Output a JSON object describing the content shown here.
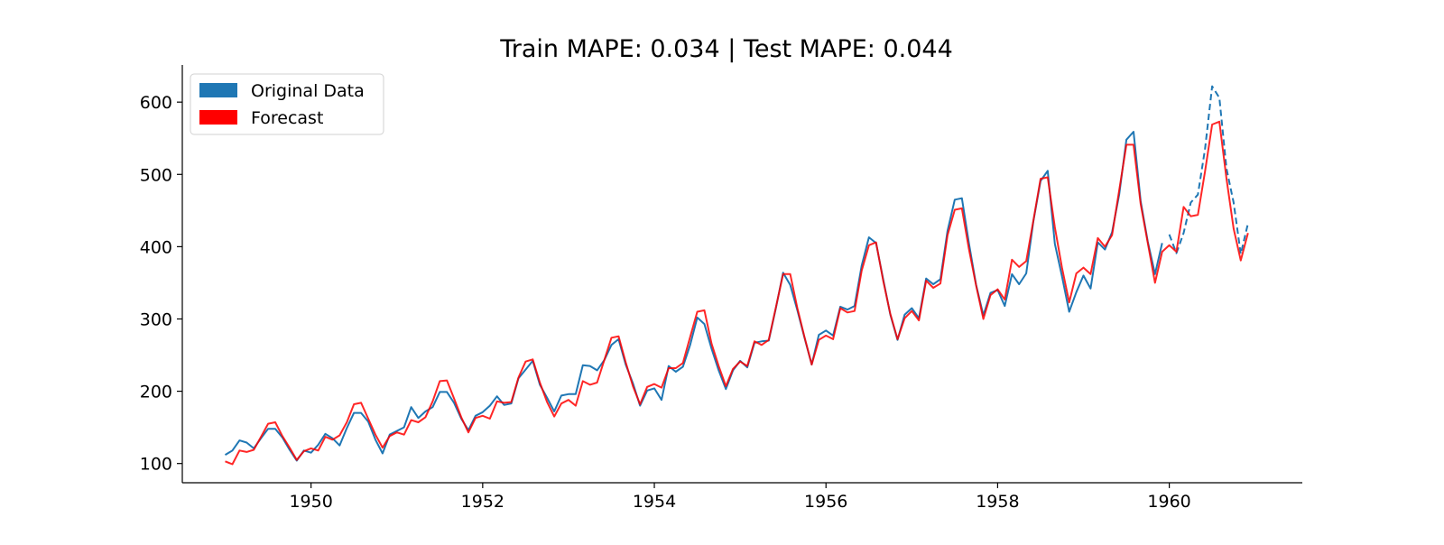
{
  "chart_data": {
    "type": "line",
    "title": "Train MAPE: 0.034 | Test MAPE: 0.044",
    "xlabel": "",
    "ylabel": "",
    "xlim": [
      1948.5,
      1961.55
    ],
    "ylim": [
      73.4,
      651.4
    ],
    "x_ticks": [
      1950,
      1952,
      1954,
      1956,
      1958,
      1960
    ],
    "y_ticks": [
      100,
      200,
      300,
      400,
      500,
      600
    ],
    "grid": false,
    "legend_position": "top-left",
    "legend": [
      {
        "label": "Original Data",
        "color": "#1f77b4"
      },
      {
        "label": "Forecast",
        "color": "#ff0000"
      }
    ],
    "start": "1949-01",
    "frequency": "monthly",
    "series": [
      {
        "name": "Original Data",
        "color": "#1f77b4",
        "style": "solid",
        "start": "1949-01",
        "values": [
          112,
          118,
          132,
          129,
          121,
          135,
          148,
          148,
          136,
          119,
          104,
          118,
          115,
          126,
          141,
          135,
          125,
          149,
          170,
          170,
          158,
          133,
          114,
          140,
          145,
          150,
          178,
          163,
          172,
          178,
          199,
          199,
          184,
          162,
          146,
          166,
          171,
          180,
          193,
          181,
          183,
          218,
          230,
          242,
          209,
          191,
          172,
          194,
          196,
          196,
          236,
          235,
          229,
          243,
          264,
          272,
          237,
          211,
          180,
          201,
          204,
          188,
          235,
          227,
          234,
          264,
          302,
          293,
          259,
          229,
          203,
          229,
          242,
          233,
          267,
          269,
          270,
          315,
          364,
          347,
          312,
          274,
          237,
          278,
          284,
          277,
          317,
          313,
          318,
          374,
          413,
          405,
          355,
          306,
          271,
          306,
          315,
          301,
          356,
          348,
          355,
          422,
          465,
          467,
          404,
          347,
          305,
          336,
          340,
          318,
          362,
          348,
          363,
          435,
          491,
          505,
          404,
          359,
          310,
          337,
          360,
          342,
          406,
          396,
          420,
          472,
          548,
          559,
          463,
          407,
          362,
          405
        ]
      },
      {
        "name": "Original Data",
        "color": "#1f77b4",
        "style": "dashed",
        "start": "1960-01",
        "values": [
          417,
          391,
          419,
          461,
          472,
          535,
          622,
          606,
          508,
          461,
          390,
          432
        ]
      },
      {
        "name": "Forecast",
        "color": "#ff0000",
        "style": "solid",
        "start": "1949-01",
        "values": [
          103,
          99,
          118,
          116,
          119,
          137,
          155,
          157,
          138,
          122,
          105,
          117,
          121,
          118,
          137,
          133,
          139,
          157,
          182,
          184,
          162,
          140,
          122,
          138,
          143,
          140,
          160,
          157,
          164,
          186,
          214,
          215,
          190,
          164,
          143,
          163,
          166,
          162,
          186,
          184,
          185,
          219,
          241,
          244,
          212,
          185,
          165,
          183,
          188,
          180,
          214,
          209,
          212,
          243,
          274,
          276,
          240,
          207,
          182,
          206,
          210,
          205,
          232,
          232,
          239,
          275,
          310,
          312,
          266,
          235,
          207,
          231,
          241,
          235,
          269,
          264,
          271,
          316,
          362,
          362,
          315,
          275,
          237,
          271,
          277,
          272,
          315,
          309,
          311,
          367,
          402,
          406,
          353,
          307,
          272,
          301,
          311,
          298,
          353,
          343,
          349,
          416,
          451,
          453,
          396,
          346,
          300,
          333,
          341,
          327,
          382,
          372,
          380,
          436,
          494,
          496,
          427,
          371,
          323,
          363,
          371,
          362,
          412,
          400,
          416,
          478,
          541,
          541,
          459,
          405,
          350,
          393,
          402,
          393,
          455,
          442,
          444,
          504,
          569,
          573,
          494,
          425,
          381,
          419
        ]
      }
    ]
  }
}
